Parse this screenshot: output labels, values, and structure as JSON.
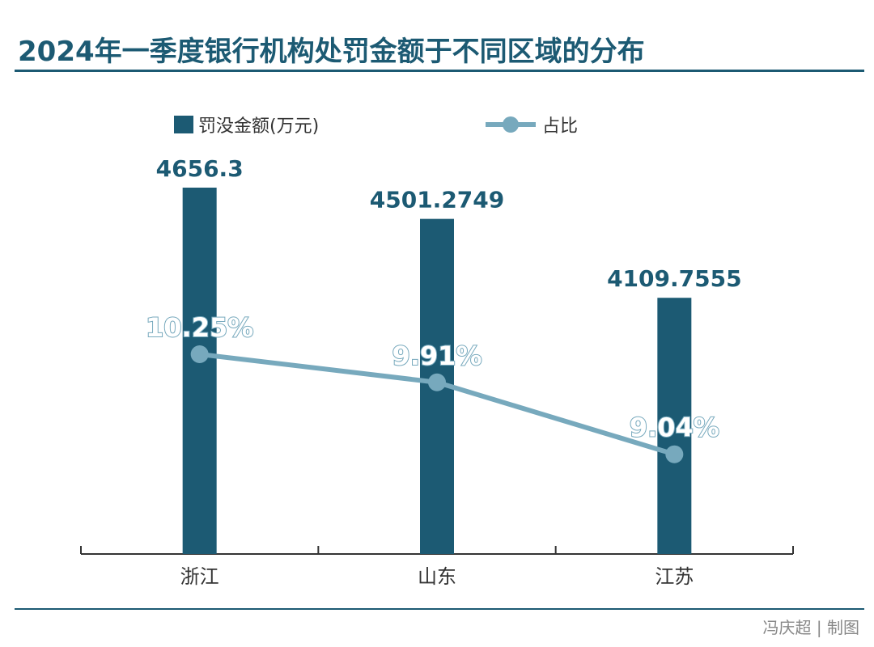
{
  "title": "2024年一季度银行机构处罚金额于不同区域的分布",
  "credit": "冯庆超 | 制图",
  "colors": {
    "bar": "#1c5a73",
    "line": "#77a9bd",
    "text": "#333333",
    "credit": "#888888"
  },
  "chart_data": {
    "type": "bar",
    "categories": [
      "浙江",
      "山东",
      "江苏"
    ],
    "series": [
      {
        "name": "罚没金额(万元)",
        "type": "bar",
        "values": [
          4656.3,
          4501.2749,
          4109.7555
        ],
        "labels": [
          "4656.3",
          "4501.2749",
          "4109.7555"
        ]
      },
      {
        "name": "占比",
        "type": "line",
        "values": [
          10.25,
          9.91,
          9.04
        ],
        "labels": [
          "10.25%",
          "9.91%",
          "9.04%"
        ]
      }
    ],
    "legend": "top",
    "grid": false
  }
}
